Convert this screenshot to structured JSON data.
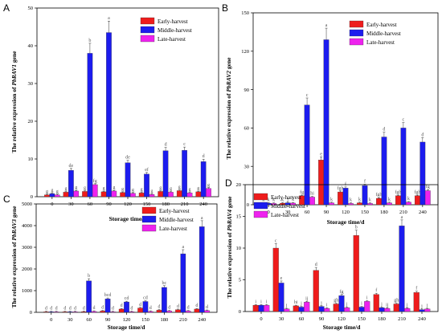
{
  "colors": {
    "early": "#ee1c1c",
    "middle": "#1c1cee",
    "late": "#ee22ee",
    "axis": "#000000",
    "letters": "#555555"
  },
  "chart_data": [
    {
      "panel_label": "A",
      "type": "bar",
      "categories": [
        "0",
        "30",
        "60",
        "90",
        "120",
        "150",
        "180",
        "210",
        "240"
      ],
      "xlabel": "Storage time/d",
      "ylabel_prefix": "The relative expression of ",
      "ylabel_gene": "PbRAV1",
      "ylabel_suffix": " gene",
      "ylim": [
        0,
        50
      ],
      "yticks": [
        0,
        10,
        20,
        30,
        40,
        50
      ],
      "legend_position": "top-right",
      "series": [
        {
          "name": "Early-harvest",
          "color_key": "early",
          "values": [
            0.5,
            1.2,
            1.4,
            1.3,
            1.1,
            1.0,
            1.4,
            1.6,
            1.3
          ],
          "letters": [
            "g",
            "g",
            "g",
            "g",
            "g",
            "g",
            "g",
            "g",
            "g"
          ]
        },
        {
          "name": "Middle-harvest",
          "color_key": "middle",
          "values": [
            0.8,
            7,
            38,
            43.5,
            9,
            6,
            12.2,
            12.3,
            9.3
          ],
          "letters": [
            "g",
            "de",
            "b",
            "a",
            "de",
            "ef",
            "d",
            "c",
            "d"
          ]
        },
        {
          "name": "Late-harvest",
          "color_key": "late",
          "values": [
            0.5,
            1.5,
            3.2,
            1.5,
            0.9,
            0.6,
            1.2,
            1.0,
            2.2
          ],
          "letters": [
            "g",
            "g",
            "fg",
            "g",
            "g",
            "g",
            "g",
            "g",
            "g"
          ]
        }
      ]
    },
    {
      "panel_label": "B",
      "type": "bar",
      "categories": [
        "0",
        "30",
        "60",
        "90",
        "120",
        "150",
        "180",
        "210",
        "240"
      ],
      "xlabel": "Storage time/d",
      "ylabel_prefix": "The relative expression of ",
      "ylabel_gene": "PbRAV2",
      "ylabel_suffix": " gene",
      "ylim": [
        0,
        150
      ],
      "yticks": [
        0,
        30,
        60,
        90,
        120,
        150
      ],
      "legend_position": "top-right",
      "series": [
        {
          "name": "Early-harvest",
          "color_key": "early",
          "values": [
            1,
            1.2,
            7,
            35,
            10,
            1.5,
            5,
            7,
            7
          ],
          "letters": [
            "k",
            "k",
            "fg",
            "e",
            "fgh",
            "k",
            "fgh",
            "fgh",
            "fgh"
          ]
        },
        {
          "name": "Middle-harvest",
          "color_key": "middle",
          "values": [
            1.2,
            1.5,
            78,
            129,
            13,
            15,
            53,
            60,
            49
          ],
          "letters": [
            "k",
            "j",
            "c",
            "a",
            "f",
            "f",
            "d",
            "c",
            "d"
          ]
        },
        {
          "name": "Late-harvest",
          "color_key": "late",
          "values": [
            1,
            1.3,
            6,
            1.5,
            1,
            1,
            1.5,
            2,
            11
          ],
          "letters": [
            "k",
            "k",
            "hi",
            "k",
            "k",
            "k",
            "k",
            "k",
            "fg"
          ]
        }
      ]
    },
    {
      "panel_label": "C",
      "type": "bar",
      "categories": [
        "0",
        "30",
        "60",
        "90",
        "120",
        "150",
        "180",
        "210",
        "240"
      ],
      "xlabel": "Storage time/d",
      "ylabel_prefix": "The relative expression of ",
      "ylabel_gene": "PbRAV3",
      "ylabel_suffix": " gene",
      "ylim": [
        0,
        5000
      ],
      "yticks": [
        0,
        1000,
        2000,
        3000,
        4000,
        5000
      ],
      "legend_position": "top-right",
      "series": [
        {
          "name": "Early-harvest",
          "color_key": "early",
          "values": [
            5,
            5,
            30,
            60,
            150,
            200,
            100,
            120,
            150
          ],
          "letters": [
            "d",
            "d",
            "d",
            "d",
            "d",
            "d",
            "d",
            "d",
            "d"
          ]
        },
        {
          "name": "Middle-harvest",
          "color_key": "middle",
          "values": [
            5,
            5,
            1450,
            620,
            480,
            500,
            1150,
            2700,
            3950
          ],
          "letters": [
            "d",
            "d",
            "b",
            "bcd",
            "cd",
            "cd",
            "bc",
            "a",
            "a"
          ]
        },
        {
          "name": "Late-harvest",
          "color_key": "late",
          "values": [
            5,
            5,
            40,
            20,
            30,
            40,
            60,
            60,
            80
          ],
          "letters": [
            "d",
            "d",
            "d",
            "d",
            "d",
            "d",
            "d",
            "d",
            "d"
          ]
        }
      ]
    },
    {
      "panel_label": "D",
      "type": "bar",
      "categories": [
        "0",
        "30",
        "60",
        "90",
        "120",
        "150",
        "180",
        "210",
        "240"
      ],
      "xlabel": "Storage time/d",
      "ylabel_prefix": "The relative expression of ",
      "ylabel_gene": "PbRAV4",
      "ylabel_suffix": " gene",
      "ylim": [
        0,
        20
      ],
      "yticks": [
        0,
        5,
        10,
        15,
        20
      ],
      "legend_position": "top-left",
      "series": [
        {
          "name": "Early-harvest",
          "color_key": "early",
          "values": [
            1,
            10,
            0.9,
            6.5,
            1.2,
            12,
            2.7,
            1.2,
            3
          ],
          "letters": [
            "i",
            "c",
            "hi",
            "d",
            "gh",
            "b",
            "f",
            "gh",
            "f"
          ]
        },
        {
          "name": "Middle-harvest",
          "color_key": "middle",
          "values": [
            1,
            4.5,
            0.7,
            0.8,
            2.5,
            0.7,
            0.6,
            13.5,
            0.3
          ],
          "letters": [
            "i",
            "e",
            "j",
            "j",
            "fg",
            "i",
            "j",
            "a",
            "j"
          ]
        },
        {
          "name": "Late-harvest",
          "color_key": "late",
          "values": [
            1,
            0.4,
            1.5,
            0.5,
            0.6,
            1.6,
            0.5,
            0.5,
            0.4
          ],
          "letters": [
            "i",
            "j",
            "ij",
            "i",
            "j",
            "i",
            "ij",
            "j",
            "j"
          ]
        }
      ]
    }
  ]
}
